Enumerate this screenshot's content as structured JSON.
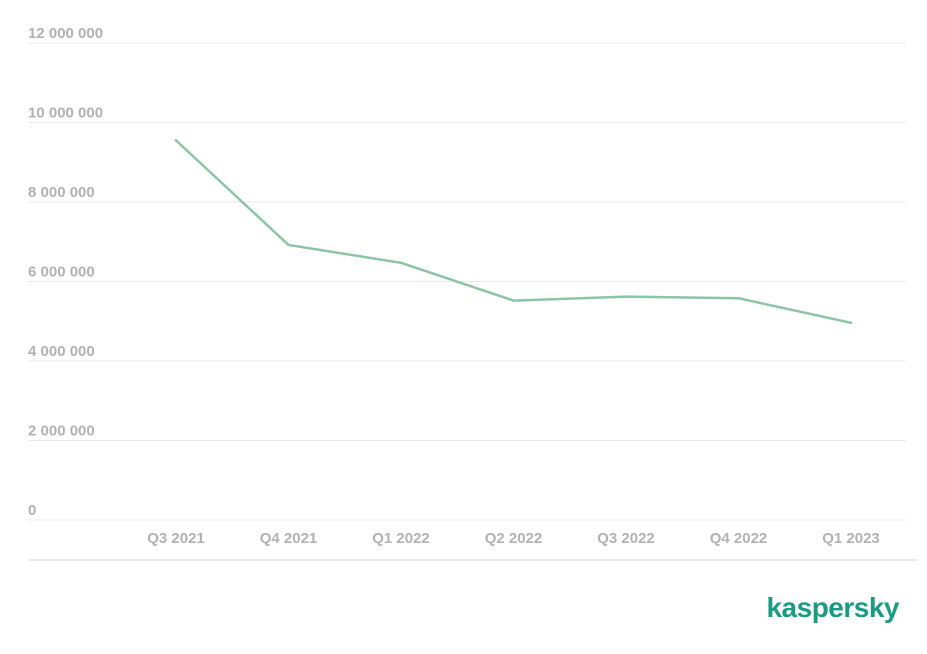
{
  "chart_data": {
    "type": "line",
    "categories": [
      "Q3 2021",
      "Q4 2021",
      "Q1 2022",
      "Q2 2022",
      "Q3 2022",
      "Q4 2022",
      "Q1 2023"
    ],
    "series": [
      {
        "values": [
          9550000,
          6920000,
          6470000,
          5520000,
          5620000,
          5580000,
          4960000
        ]
      }
    ],
    "yticks": [
      0,
      2000000,
      4000000,
      6000000,
      8000000,
      10000000,
      12000000
    ],
    "ytick_labels": [
      "0",
      "2 000 000",
      "4 000 000",
      "6 000 000",
      "8 000 000",
      "10 000 000",
      "12 000 000"
    ],
    "ylim": [
      0,
      12000000
    ],
    "grid": true,
    "legend": "none",
    "line_color": "#8cc5a4",
    "grid_color": "#e8e8e8"
  },
  "brand": {
    "text": "kaspersky",
    "color": "#1a9b84"
  }
}
